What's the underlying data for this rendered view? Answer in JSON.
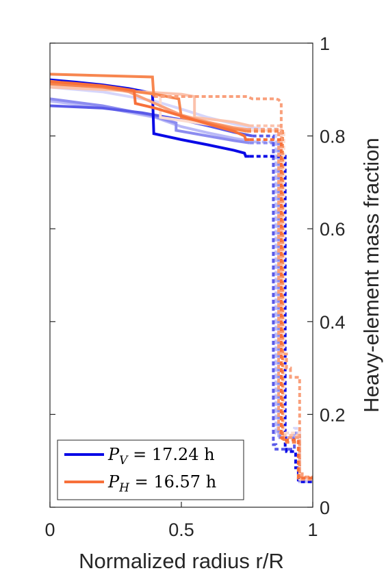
{
  "chart_data": {
    "type": "line",
    "xlabel": "Normalized radius r/R",
    "ylabel": "Heavy-element mass fraction",
    "xlim": [
      0,
      1
    ],
    "ylim": [
      0,
      1
    ],
    "x_ticks": [
      0,
      0.5,
      1
    ],
    "x_tick_labels": [
      "0",
      "0.5",
      "1"
    ],
    "y_ticks": [
      0,
      0.2,
      0.4,
      0.6,
      0.8,
      1
    ],
    "y_tick_labels": [
      "0",
      "0.2",
      "0.4",
      "0.6",
      "0.8",
      "1"
    ],
    "y_axis_side": "right",
    "grid": false,
    "legend_position": "bottom-left",
    "legend": [
      {
        "sym": "P",
        "sub": "V",
        "rest": " = 17.24 h",
        "color": "#0a0ae6"
      },
      {
        "sym": "P",
        "sub": "H",
        "rest": " = 16.57 h",
        "color": "#f7703a"
      }
    ],
    "series": [
      {
        "color": "#d6d6fb",
        "dash": "solid",
        "x": [
          0,
          0.2,
          0.4,
          0.5,
          0.6,
          0.7,
          0.8
        ],
        "y": [
          0.905,
          0.895,
          0.875,
          0.858,
          0.84,
          0.826,
          0.815
        ]
      },
      {
        "color": "#d6d6fb",
        "dash": "dotted",
        "x": [
          0.8,
          0.86,
          0.86,
          0.875,
          0.875,
          0.93,
          0.93,
          0.95,
          0.95,
          1
        ],
        "y": [
          0.815,
          0.815,
          0.17,
          0.17,
          0.16,
          0.16,
          0.17,
          0.17,
          0.06,
          0.06
        ]
      },
      {
        "color": "#b9b9f7",
        "dash": "solid",
        "x": [
          0,
          0.2,
          0.4,
          0.5,
          0.6,
          0.7,
          0.78
        ],
        "y": [
          0.875,
          0.862,
          0.84,
          0.82,
          0.807,
          0.795,
          0.787
        ]
      },
      {
        "color": "#b9b9f7",
        "dash": "dotted",
        "x": [
          0.78,
          0.86,
          0.86,
          0.87,
          0.87,
          0.93,
          0.93,
          0.95,
          0.95,
          1
        ],
        "y": [
          0.787,
          0.787,
          0.16,
          0.16,
          0.15,
          0.15,
          0.16,
          0.16,
          0.055,
          0.055
        ]
      },
      {
        "color": "#8c8cf0",
        "dash": "solid",
        "x": [
          0,
          0.2,
          0.38,
          0.48,
          0.48,
          0.6,
          0.7,
          0.76
        ],
        "y": [
          0.88,
          0.865,
          0.845,
          0.828,
          0.812,
          0.8,
          0.79,
          0.785
        ]
      },
      {
        "color": "#8c8cf0",
        "dash": "dotted",
        "x": [
          0.76,
          0.87,
          0.87,
          0.875,
          0.875,
          0.93,
          0.93,
          0.95,
          0.95,
          1
        ],
        "y": [
          0.785,
          0.785,
          0.155,
          0.155,
          0.15,
          0.15,
          0.16,
          0.16,
          0.06,
          0.06
        ]
      },
      {
        "color": "#5a5ae8",
        "dash": "solid",
        "x": [
          0,
          0.2,
          0.35,
          0.5,
          0.6,
          0.7,
          0.77
        ],
        "y": [
          0.865,
          0.86,
          0.85,
          0.835,
          0.822,
          0.808,
          0.8
        ]
      },
      {
        "color": "#5a5ae8",
        "dash": "dotted",
        "x": [
          0.77,
          0.85,
          0.85,
          0.86,
          0.86,
          0.93,
          0.93,
          0.95,
          0.95,
          1
        ],
        "y": [
          0.8,
          0.8,
          0.135,
          0.135,
          0.125,
          0.125,
          0.15,
          0.15,
          0.055,
          0.055
        ]
      },
      {
        "color": "#0a0ae6",
        "dash": "solid",
        "x": [
          0,
          0.1,
          0.2,
          0.3,
          0.39,
          0.395,
          0.5,
          0.6,
          0.7,
          0.74,
          0.745,
          0.76
        ],
        "y": [
          0.921,
          0.916,
          0.91,
          0.902,
          0.892,
          0.805,
          0.792,
          0.781,
          0.769,
          0.763,
          0.756,
          0.756
        ]
      },
      {
        "color": "#0a0ae6",
        "dash": "dotted",
        "x": [
          0.76,
          0.895,
          0.895,
          0.9,
          0.9,
          0.935,
          0.935,
          0.945,
          0.945,
          1
        ],
        "y": [
          0.756,
          0.756,
          0.125,
          0.125,
          0.12,
          0.12,
          0.085,
          0.085,
          0.055,
          0.055
        ]
      },
      {
        "color": "#fcdcd0",
        "dash": "solid",
        "x": [
          0,
          0.2,
          0.42,
          0.42,
          0.6,
          0.74
        ],
        "y": [
          0.91,
          0.903,
          0.89,
          0.84,
          0.825,
          0.812
        ]
      },
      {
        "color": "#fcdcd0",
        "dash": "dotted",
        "x": [
          0.74,
          0.89,
          0.89,
          0.895,
          0.895,
          0.95,
          0.95,
          1
        ],
        "y": [
          0.812,
          0.812,
          0.168,
          0.168,
          0.16,
          0.16,
          0.06,
          0.06
        ]
      },
      {
        "color": "#fbc2ac",
        "dash": "solid",
        "x": [
          0,
          0.2,
          0.5,
          0.55,
          0.55,
          0.7,
          0.76
        ],
        "y": [
          0.905,
          0.9,
          0.89,
          0.885,
          0.84,
          0.83,
          0.822
        ]
      },
      {
        "color": "#fbc2ac",
        "dash": "dotted",
        "x": [
          0.76,
          0.88,
          0.88,
          0.89,
          0.89,
          0.945,
          0.945,
          1
        ],
        "y": [
          0.822,
          0.822,
          0.16,
          0.16,
          0.155,
          0.155,
          0.06,
          0.06
        ]
      },
      {
        "color": "#f9a07c",
        "dash": "solid",
        "x": [
          0,
          0.2,
          0.3,
          0.5,
          0.6,
          0.7,
          0.75
        ],
        "y": [
          0.918,
          0.905,
          0.895,
          0.845,
          0.83,
          0.818,
          0.814
        ]
      },
      {
        "color": "#f9a07c",
        "dash": "dotted",
        "x": [
          0.75,
          0.87,
          0.87,
          0.885,
          0.885,
          0.95,
          0.95,
          1
        ],
        "y": [
          0.814,
          0.814,
          0.16,
          0.16,
          0.15,
          0.15,
          0.06,
          0.06
        ]
      },
      {
        "color": "#f7864f",
        "dash": "solid",
        "x": [
          0,
          0.2,
          0.4,
          0.49,
          0.5,
          0.6,
          0.7,
          0.75
        ],
        "y": [
          0.912,
          0.905,
          0.89,
          0.88,
          0.84,
          0.828,
          0.815,
          0.81
        ]
      },
      {
        "color": "#f7864f",
        "dash": "dotted",
        "x": [
          0.75,
          0.885,
          0.885,
          0.89,
          0.89,
          0.95,
          0.95,
          1
        ],
        "y": [
          0.81,
          0.81,
          0.148,
          0.148,
          0.14,
          0.14,
          0.065,
          0.065
        ]
      },
      {
        "color": "#f9a07c",
        "dash": "dotted",
        "x": [
          0.395,
          0.75,
          0.77,
          0.86,
          0.87,
          0.88,
          0.88,
          0.9,
          0.9,
          0.915,
          0.915,
          0.95,
          0.95,
          0.96,
          0.96,
          1
        ],
        "y": [
          0.885,
          0.885,
          0.88,
          0.88,
          0.878,
          0.872,
          0.33,
          0.33,
          0.3,
          0.3,
          0.28,
          0.28,
          0.075,
          0.075,
          0.065,
          0.065
        ]
      },
      {
        "color": "#f7703a",
        "dash": "solid",
        "x": [
          0,
          0.1,
          0.2,
          0.32,
          0.325,
          0.4,
          0.5,
          0.6,
          0.7,
          0.74,
          0.745,
          0.76
        ],
        "y": [
          0.917,
          0.913,
          0.908,
          0.898,
          0.87,
          0.86,
          0.843,
          0.826,
          0.81,
          0.8,
          0.792,
          0.792
        ]
      },
      {
        "color": "#f7703a",
        "dash": "dotted",
        "x": [
          0.76,
          0.88,
          0.88,
          0.885,
          0.885,
          0.945,
          0.945,
          1
        ],
        "y": [
          0.792,
          0.792,
          0.15,
          0.15,
          0.145,
          0.145,
          0.063,
          0.063
        ]
      },
      {
        "color": "#f7864f",
        "dash": "solid",
        "x": [
          0,
          0.39,
          0.395
        ],
        "y": [
          0.933,
          0.927,
          0.885
        ]
      }
    ]
  }
}
